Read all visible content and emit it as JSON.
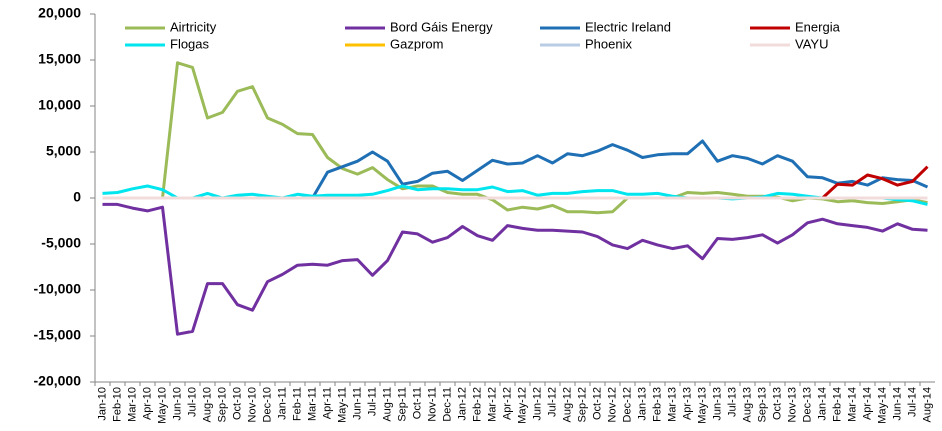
{
  "chart_data": {
    "type": "line",
    "categories": [
      "Jan-10",
      "Feb-10",
      "Mar-10",
      "Apr-10",
      "May-10",
      "Jun-10",
      "Jul-10",
      "Aug-10",
      "Sep-10",
      "Oct-10",
      "Nov-10",
      "Dec-10",
      "Jan-11",
      "Feb-11",
      "Mar-11",
      "Apr-11",
      "May-11",
      "Jun-11",
      "Jul-11",
      "Aug-11",
      "Sep-11",
      "Oct-11",
      "Nov-11",
      "Dec-11",
      "Jan-12",
      "Feb-12",
      "Mar-12",
      "Apr-12",
      "May-12",
      "Jun-12",
      "Jul-12",
      "Aug-12",
      "Sep-12",
      "Oct-12",
      "Nov-12",
      "Dec-12",
      "Jan-13",
      "Feb-13",
      "Mar-13",
      "Apr-13",
      "May-13",
      "Jun-13",
      "Jul-13",
      "Aug-13",
      "Sep-13",
      "Oct-13",
      "Nov-13",
      "Dec-13",
      "Jan-14",
      "Feb-14",
      "Mar-14",
      "Apr-14",
      "May-14",
      "Jun-14",
      "Jul-14",
      "Aug-14"
    ],
    "series": [
      {
        "name": "Airtricity",
        "color": "#9bbb59",
        "values": [
          0,
          0,
          0,
          0,
          0,
          14700,
          14200,
          8700,
          9300,
          11600,
          12100,
          8700,
          8000,
          7000,
          6900,
          4400,
          3200,
          2600,
          3300,
          2000,
          1000,
          1300,
          1300,
          600,
          400,
          400,
          -200,
          -1300,
          -1000,
          -1200,
          -800,
          -1500,
          -1500,
          -1600,
          -1500,
          0,
          0,
          0,
          0,
          600,
          500,
          600,
          400,
          200,
          200,
          100,
          -300,
          0,
          -100,
          -400,
          -300,
          -500,
          -600,
          -400,
          -200,
          -500
        ]
      },
      {
        "name": "Bord Gáis Energy",
        "color": "#7030a0",
        "values": [
          -700,
          -700,
          -1100,
          -1400,
          -1000,
          -14800,
          -14500,
          -9300,
          -9300,
          -11600,
          -12200,
          -9100,
          -8300,
          -7300,
          -7200,
          -7300,
          -6800,
          -6700,
          -8400,
          -6800,
          -3700,
          -3900,
          -4800,
          -4300,
          -3100,
          -4100,
          -4600,
          -3000,
          -3300,
          -3500,
          -3500,
          -3600,
          -3700,
          -4200,
          -5100,
          -5500,
          -4600,
          -5100,
          -5500,
          -5200,
          -6600,
          -4400,
          -4500,
          -4300,
          -4000,
          -4900,
          -4000,
          -2700,
          -2300,
          -2800,
          -3000,
          -3200,
          -3600,
          -2800,
          -3400,
          -3500
        ]
      },
      {
        "name": "Electric Ireland",
        "color": "#1f6fb4",
        "values": [
          0,
          0,
          0,
          0,
          0,
          0,
          0,
          0,
          0,
          0,
          0,
          0,
          0,
          0,
          0,
          2800,
          3400,
          4000,
          5000,
          4000,
          1500,
          1800,
          2700,
          2900,
          1900,
          3000,
          4100,
          3700,
          3800,
          4600,
          3800,
          4800,
          4600,
          5100,
          5800,
          5200,
          4400,
          4700,
          4800,
          4800,
          6200,
          4000,
          4600,
          4300,
          3700,
          4600,
          4000,
          2300,
          2200,
          1600,
          1800,
          1400,
          2200,
          2000,
          1900,
          1200
        ]
      },
      {
        "name": "Energia",
        "color": "#c00000",
        "values": [
          0,
          0,
          0,
          0,
          0,
          0,
          0,
          0,
          0,
          0,
          0,
          0,
          0,
          0,
          0,
          0,
          0,
          0,
          0,
          0,
          0,
          0,
          0,
          0,
          0,
          0,
          0,
          0,
          0,
          0,
          0,
          0,
          0,
          0,
          0,
          0,
          0,
          0,
          0,
          0,
          0,
          0,
          0,
          0,
          0,
          0,
          0,
          0,
          0,
          1500,
          1400,
          2500,
          2100,
          1400,
          1800,
          3400
        ]
      },
      {
        "name": "Flogas",
        "color": "#00e5ee",
        "values": [
          500,
          600,
          1000,
          1300,
          900,
          0,
          0,
          500,
          0,
          300,
          400,
          200,
          0,
          400,
          200,
          300,
          300,
          300,
          400,
          800,
          1300,
          900,
          1000,
          1000,
          900,
          900,
          1200,
          700,
          800,
          300,
          500,
          500,
          700,
          800,
          800,
          400,
          400,
          500,
          200,
          0,
          0,
          0,
          -100,
          0,
          100,
          500,
          400,
          200,
          0,
          0,
          0,
          0,
          0,
          -200,
          -300,
          -700
        ]
      },
      {
        "name": "Gazprom",
        "color": "#ffc000",
        "values": [
          0,
          0,
          0,
          0,
          0,
          0,
          0,
          0,
          0,
          0,
          0,
          0,
          0,
          0,
          0,
          0,
          0,
          0,
          0,
          0,
          0,
          0,
          0,
          0,
          0,
          0,
          0,
          0,
          0,
          0,
          0,
          0,
          0,
          0,
          0,
          0,
          0,
          0,
          0,
          0,
          0,
          0,
          0,
          0,
          0,
          0,
          0,
          0,
          0,
          0,
          0,
          0,
          0,
          0,
          0,
          0
        ]
      },
      {
        "name": "Phoenix",
        "color": "#b8cce4",
        "values": [
          0,
          0,
          0,
          0,
          0,
          0,
          0,
          0,
          0,
          0,
          0,
          0,
          0,
          0,
          0,
          0,
          0,
          0,
          0,
          0,
          0,
          0,
          0,
          0,
          0,
          0,
          0,
          0,
          0,
          0,
          0,
          0,
          0,
          0,
          0,
          0,
          0,
          0,
          0,
          0,
          0,
          0,
          0,
          0,
          0,
          0,
          0,
          0,
          0,
          0,
          0,
          0,
          0,
          0,
          0,
          0
        ]
      },
      {
        "name": "VAYU",
        "color": "#f2dcdb",
        "values": [
          0,
          0,
          0,
          0,
          0,
          0,
          0,
          0,
          0,
          0,
          0,
          0,
          0,
          0,
          0,
          0,
          0,
          0,
          0,
          0,
          0,
          0,
          0,
          0,
          0,
          0,
          0,
          0,
          0,
          0,
          0,
          0,
          0,
          0,
          0,
          0,
          0,
          0,
          0,
          0,
          0,
          0,
          0,
          0,
          0,
          0,
          0,
          0,
          0,
          0,
          0,
          0,
          0,
          0,
          0,
          0
        ]
      }
    ],
    "ylim": [
      -20000,
      20000
    ],
    "yticks": [
      {
        "value": -20000,
        "label": "-20,000"
      },
      {
        "value": -15000,
        "label": "-15,000"
      },
      {
        "value": -10000,
        "label": "-10,000"
      },
      {
        "value": -5000,
        "label": "-5,000"
      },
      0,
      {
        "value": 5000,
        "label": "5,000"
      },
      {
        "value": 10000,
        "label": "10,000"
      },
      {
        "value": 15000,
        "label": "15,000"
      },
      {
        "value": 20000,
        "label": "20,000"
      }
    ],
    "grid": false,
    "legend": "top"
  }
}
